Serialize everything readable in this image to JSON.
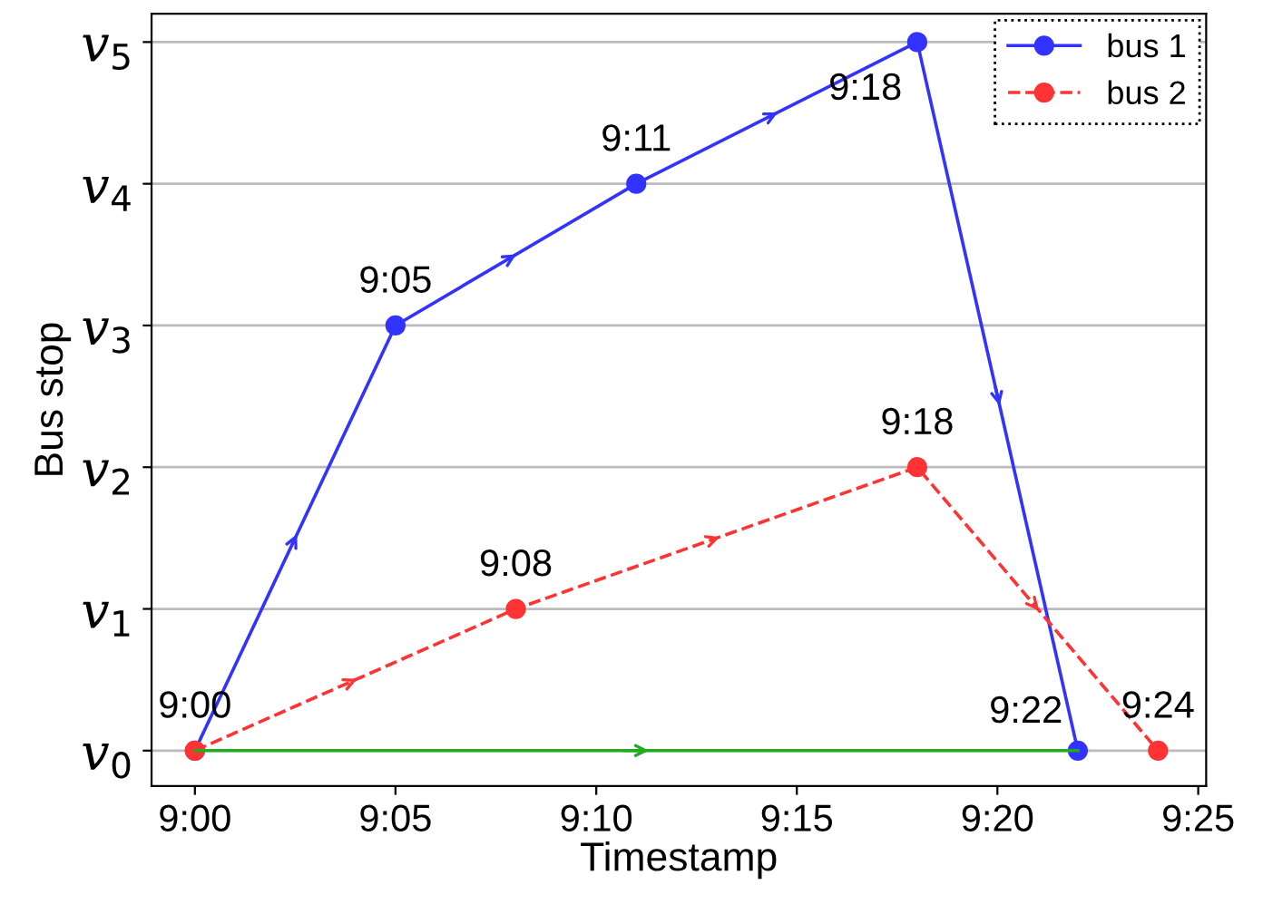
{
  "chart_data": {
    "type": "line",
    "xlabel": "Timestamp",
    "ylabel": "Bus stop",
    "series": [
      {
        "name": "bus 1",
        "color": "#3333ff",
        "marker": "circle",
        "line_style": "solid",
        "x": [
          9.0,
          9.0833,
          9.1833,
          9.3,
          9.3667
        ],
        "values": [
          0,
          3,
          4,
          5,
          0
        ]
      },
      {
        "name": "bus 2",
        "color": "#ff3333",
        "marker": "circle",
        "line_style": "dashed",
        "x": [
          9.0,
          9.1333,
          9.3,
          9.4
        ],
        "values": [
          0,
          1,
          2,
          0
        ]
      },
      {
        "color": "#22aa22",
        "marker": "none",
        "line_style": "solid",
        "x": [
          9.0,
          9.3667
        ],
        "values": [
          0,
          0
        ]
      }
    ],
    "xlim": [
      8.982,
      9.42
    ],
    "xticks": [
      {
        "value": 9.0,
        "label": "9:00"
      },
      {
        "value": 9.0833,
        "label": "9:05"
      },
      {
        "value": 9.1667,
        "label": "9:10"
      },
      {
        "value": 9.25,
        "label": "9:15"
      },
      {
        "value": 9.3333,
        "label": "9:20"
      },
      {
        "value": 9.4167,
        "label": "9:25"
      }
    ],
    "ylim": [
      -0.25,
      5.2
    ],
    "yticks": [
      {
        "value": 0,
        "label": "v$_{0}$"
      },
      {
        "value": 1,
        "label": "v$_{1}$"
      },
      {
        "value": 2,
        "label": "v$_{2}$"
      },
      {
        "value": 3,
        "label": "v$_{3}$"
      },
      {
        "value": 4,
        "label": "v$_{4}$"
      },
      {
        "value": 5,
        "label": "v$_{5}$"
      }
    ],
    "grid": "y",
    "legend": "top right",
    "annotations": [
      {
        "text": "9:00",
        "x": 9.0,
        "y": 0
      },
      {
        "text": "9:05",
        "x": 9.0833,
        "y": 3
      },
      {
        "text": "9:11",
        "x": 9.1833,
        "y": 4
      },
      {
        "text": "9:18",
        "x": 9.3,
        "y": 5
      },
      {
        "text": "9:22",
        "x": 9.3667,
        "y": 0
      },
      {
        "text": "9:08",
        "x": 9.1333,
        "y": 1
      },
      {
        "text": "9:18",
        "x": 9.3,
        "y": 2
      },
      {
        "text": "9:24",
        "x": 9.4,
        "y": 0
      }
    ]
  }
}
